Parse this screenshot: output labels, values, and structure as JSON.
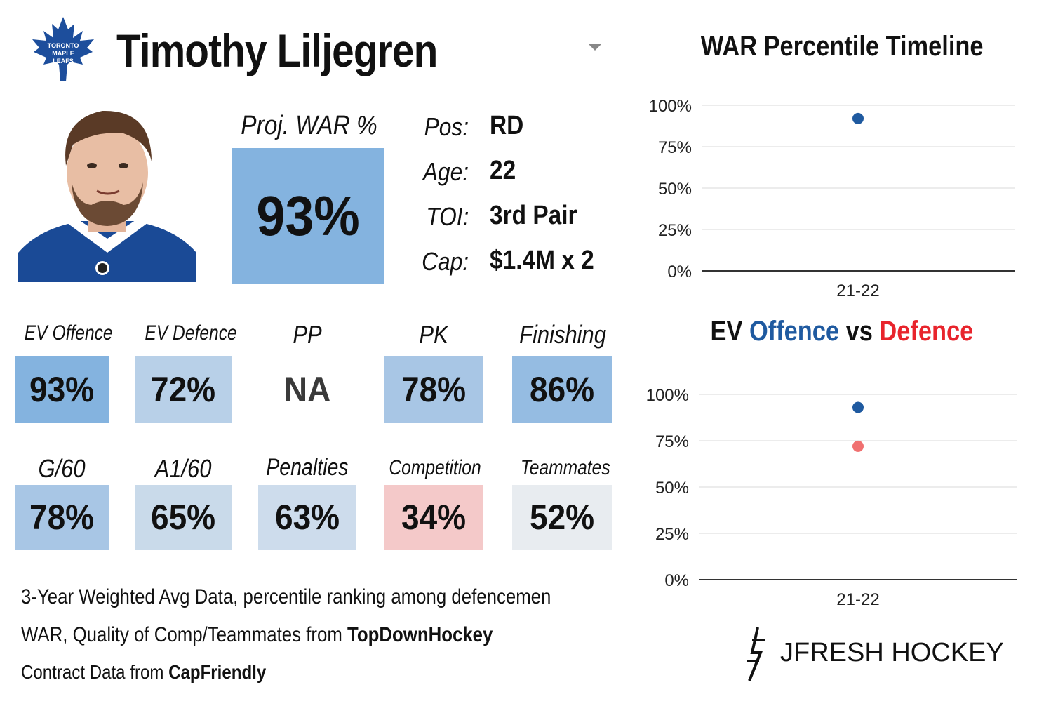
{
  "header": {
    "team_logo": "Toronto Maple Leafs",
    "team_logo_text": [
      "TORONTO",
      "MAPLE",
      "LEAFS"
    ],
    "player_name": "Timothy Liljegren",
    "dropdown_icon": "chevron-down-icon"
  },
  "projection": {
    "label": "Proj. WAR %",
    "value": "93%",
    "color": "#84b3df"
  },
  "info": {
    "pos_label": "Pos:",
    "pos_value": "RD",
    "age_label": "Age:",
    "age_value": "22",
    "toi_label": "TOI:",
    "toi_value": "3rd Pair",
    "cap_label": "Cap:",
    "cap_value": "$1.4M x 2"
  },
  "stats": [
    {
      "label": "EV Offence",
      "value": "93%",
      "color": "#84b3df"
    },
    {
      "label": "EV Defence",
      "value": "72%",
      "color": "#b8d0e8"
    },
    {
      "label": "PP",
      "value": "NA",
      "color": "#ffffff"
    },
    {
      "label": "PK",
      "value": "78%",
      "color": "#a8c6e5"
    },
    {
      "label": "Finishing",
      "value": "86%",
      "color": "#95bce2"
    },
    {
      "label": "G/60",
      "value": "78%",
      "color": "#a8c6e5"
    },
    {
      "label": "A1/60",
      "value": "65%",
      "color": "#c9daea"
    },
    {
      "label": "Penalties",
      "value": "63%",
      "color": "#cddcec"
    },
    {
      "label": "Competition",
      "value": "34%",
      "color": "#f4c9c9"
    },
    {
      "label": "Teammates",
      "value": "52%",
      "color": "#e8ecf0"
    }
  ],
  "footer": {
    "line1": "3-Year Weighted Avg Data, percentile ranking among defencemen",
    "line2_prefix": "WAR, Quality of Comp/Teammates from ",
    "line2_source": "TopDownHockey",
    "line3_prefix": "Contract Data from ",
    "line3_source": "CapFriendly"
  },
  "brand": "JFRESH HOCKEY",
  "chart_data": [
    {
      "type": "scatter",
      "title": "WAR Percentile Timeline",
      "categories": [
        "21-22"
      ],
      "series": [
        {
          "name": "WAR",
          "values": [
            92
          ],
          "color": "#1f5aa0"
        }
      ],
      "yticks": [
        "100%",
        "75%",
        "50%",
        "25%",
        "0%"
      ],
      "ylim": [
        0,
        100
      ],
      "grid": true
    },
    {
      "type": "scatter",
      "title_parts": [
        "EV ",
        "Offence",
        " vs ",
        "Defence"
      ],
      "title_colors": [
        "#111111",
        "#1f5aa0",
        "#111111",
        "#e8242c"
      ],
      "categories": [
        "21-22"
      ],
      "series": [
        {
          "name": "Offence",
          "values": [
            93
          ],
          "color": "#1f5aa0"
        },
        {
          "name": "Defence",
          "values": [
            72
          ],
          "color": "#f07070"
        }
      ],
      "yticks": [
        "100%",
        "75%",
        "50%",
        "25%",
        "0%"
      ],
      "ylim": [
        0,
        100
      ],
      "grid": true
    }
  ]
}
